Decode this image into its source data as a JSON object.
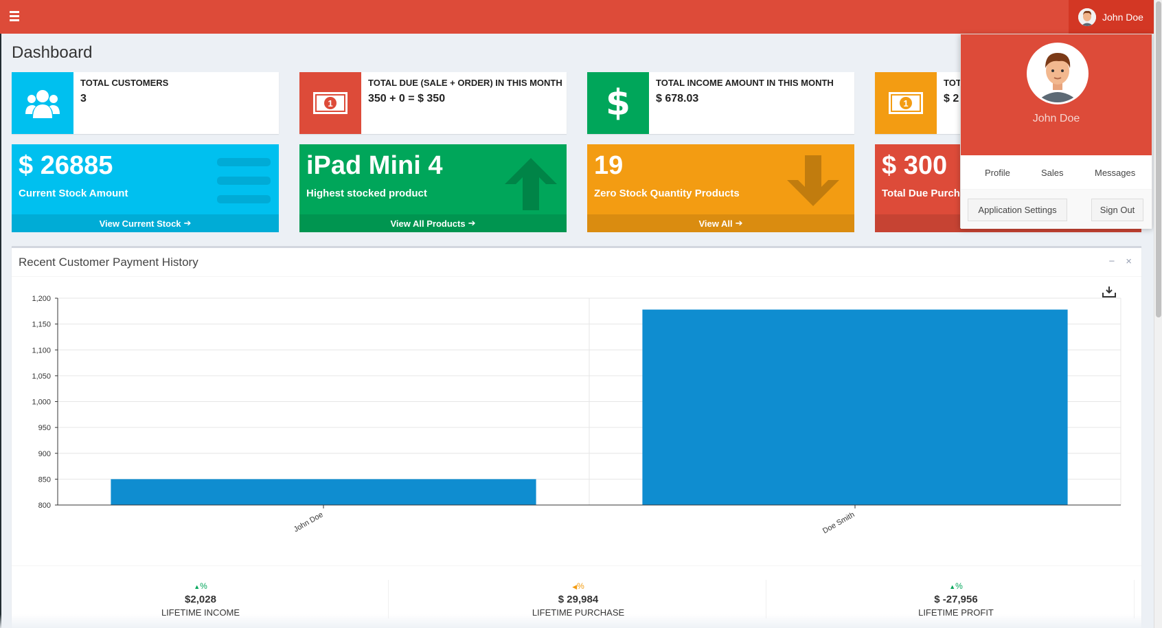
{
  "header": {
    "user_name": "John Doe",
    "colors": {
      "topbar": "#dd4b39"
    }
  },
  "page": {
    "title": "Dashboard"
  },
  "info_boxes": [
    {
      "label": "TOTAL CUSTOMERS",
      "value": "3",
      "icon": "users-icon",
      "color": "#00c0ef"
    },
    {
      "label": "TOTAL DUE (SALE + ORDER) IN THIS MONTH",
      "value": "350 + 0 = $ 350",
      "icon": "money-icon",
      "color": "#dd4b39"
    },
    {
      "label": "TOTAL INCOME AMOUNT IN THIS MONTH",
      "value": "$ 678.03",
      "icon": "dollar-icon",
      "color": "#00a65a"
    },
    {
      "label": "TOT",
      "value": "$ 2",
      "icon": "money-icon",
      "color": "#f39c12"
    }
  ],
  "small_boxes": [
    {
      "value": "$ 26885",
      "label": "Current Stock Amount",
      "footer": "View Current Stock",
      "icon": "bars-icon",
      "color": "#00c0ef"
    },
    {
      "value": "iPad Mini 4",
      "label": "Highest stocked product",
      "footer": "View All Products",
      "icon": "arrow-up-icon",
      "color": "#00a65a"
    },
    {
      "value": "19",
      "label": "Zero Stock Quantity Products",
      "footer": "View All",
      "icon": "arrow-down-icon",
      "color": "#f39c12"
    },
    {
      "value": "$ 300",
      "label": "Total Due Purcha",
      "footer": "",
      "icon": "",
      "color": "#dd4b39"
    }
  ],
  "chart_panel": {
    "title": "Recent Customer Payment History",
    "minimize_symbol": "−",
    "close_symbol": "×"
  },
  "chart_data": {
    "type": "bar",
    "categories": [
      "John Doe",
      "Doe Smith"
    ],
    "series": [
      {
        "values": [
          850,
          1178
        ],
        "color": "#0f8dd0"
      }
    ],
    "ylim": [
      800,
      1200
    ],
    "yticks": [
      800,
      850,
      900,
      950,
      1000,
      1050,
      1100,
      1150,
      1200
    ],
    "ytick_labels": [
      "800",
      "850",
      "900",
      "950",
      "1,000",
      "1,050",
      "1,100",
      "1,150",
      "1,200"
    ],
    "grid": true,
    "title": "",
    "xlabel": "",
    "ylabel": ""
  },
  "stats": [
    {
      "pct": "%",
      "arrow": "▲",
      "arrow_color": "#00a65a",
      "amount": "$2,028",
      "caption": "LIFETIME INCOME"
    },
    {
      "pct": "%",
      "arrow": "◀",
      "arrow_color": "#f39c12",
      "amount": "$ 29,984",
      "caption": "LIFETIME PURCHASE"
    },
    {
      "pct": "%",
      "arrow": "▲",
      "arrow_color": "#00a65a",
      "amount": "$ -27,956",
      "caption": "LIFETIME PROFIT"
    }
  ],
  "user_dropdown": {
    "name": "John Doe",
    "links": [
      "Profile",
      "Sales",
      "Messages"
    ],
    "settings_label": "Application Settings",
    "signout_label": "Sign Out"
  }
}
